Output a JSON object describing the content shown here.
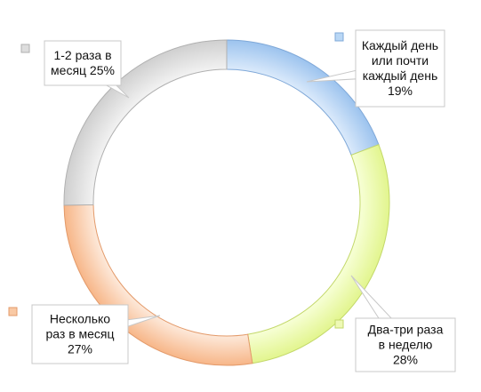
{
  "chart_data": {
    "type": "pie",
    "variant": "donut",
    "start_angle_deg": 0,
    "direction": "clockwise",
    "slices": [
      {
        "label_lines": [
          "Каждый день",
          "или почти",
          "каждый день",
          "19%"
        ],
        "value": 19,
        "color_light": "#dbeafb",
        "color_dark": "#9cc3ee",
        "edge": "#7fa8d8",
        "marker": "#b9d7f5"
      },
      {
        "label_lines": [
          "Два-три раза",
          "в неделю",
          "28%"
        ],
        "value": 28,
        "color_light": "#f7ffd6",
        "color_dark": "#e2f58e",
        "edge": "#c3d86a",
        "marker": "#eef9b5"
      },
      {
        "label_lines": [
          "Несколько",
          "раз в месяц",
          "27%"
        ],
        "value": 27,
        "color_light": "#fde9da",
        "color_dark": "#f7b688",
        "edge": "#e39a6a",
        "marker": "#f9c9a4"
      },
      {
        "label_lines": [
          "1-2 раза в",
          "месяц 25%"
        ],
        "value": 25,
        "color_light": "#f2f2f2",
        "color_dark": "#cfcfcf",
        "edge": "#b0b0b0",
        "marker": "#dddddd"
      }
    ]
  }
}
